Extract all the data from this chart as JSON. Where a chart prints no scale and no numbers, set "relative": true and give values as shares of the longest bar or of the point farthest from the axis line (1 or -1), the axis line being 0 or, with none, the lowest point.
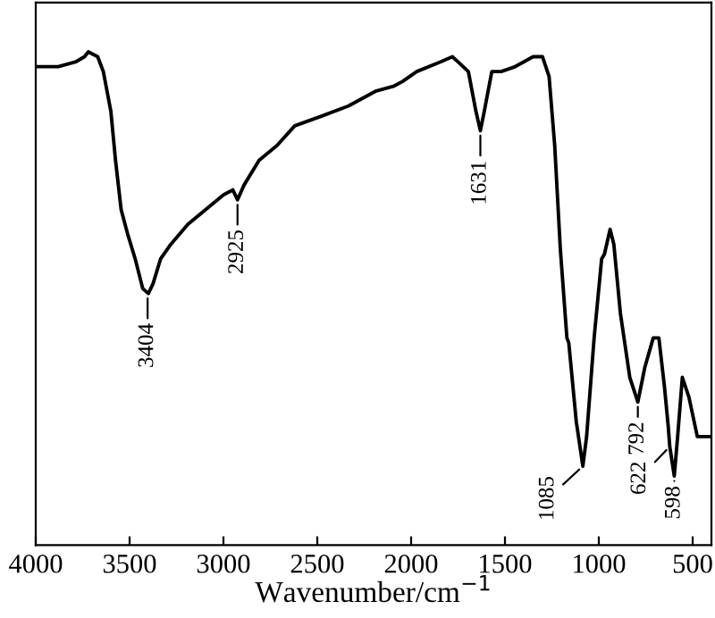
{
  "chart_data": {
    "type": "line",
    "relative": true,
    "xlabel": "Wavenumber/cm$^{−1}$",
    "xlim": [
      4000,
      400
    ],
    "xticks": [
      4000,
      3500,
      3000,
      2500,
      2000,
      1500,
      1000,
      500
    ],
    "tick_labels": "x",
    "line_style": "solid",
    "series": [
      {
        "color": "#000000",
        "x": [
          4000,
          3880,
          3785,
          3740,
          3720,
          3670,
          3640,
          3600,
          3575,
          3545,
          3510,
          3470,
          3430,
          3400,
          3375,
          3335,
          3280,
          3190,
          3095,
          3000,
          2950,
          2925,
          2890,
          2810,
          2715,
          2620,
          2475,
          2335,
          2190,
          2095,
          2045,
          1970,
          1840,
          1780,
          1695,
          1655,
          1631,
          1610,
          1570,
          1520,
          1445,
          1350,
          1300,
          1265,
          1235,
          1205,
          1170,
          1160,
          1120,
          1085,
          1065,
          1025,
          985,
          970,
          940,
          920,
          885,
          835,
          792,
          755,
          710,
          680,
          650,
          630,
          622,
          598,
          580,
          555,
          520,
          475,
          410
        ],
        "values": [
          0.97,
          0.97,
          0.98,
          0.99,
          1.0,
          0.99,
          0.96,
          0.88,
          0.78,
          0.68,
          0.63,
          0.58,
          0.52,
          0.51,
          0.53,
          0.58,
          0.61,
          0.65,
          0.68,
          0.71,
          0.72,
          0.7,
          0.73,
          0.78,
          0.81,
          0.85,
          0.87,
          0.89,
          0.92,
          0.93,
          0.94,
          0.96,
          0.98,
          0.99,
          0.96,
          0.88,
          0.84,
          0.88,
          0.96,
          0.96,
          0.97,
          0.99,
          0.99,
          0.95,
          0.81,
          0.6,
          0.42,
          0.41,
          0.25,
          0.16,
          0.22,
          0.42,
          0.58,
          0.59,
          0.64,
          0.61,
          0.47,
          0.34,
          0.29,
          0.36,
          0.42,
          0.42,
          0.32,
          0.24,
          0.2,
          0.14,
          0.22,
          0.34,
          0.3,
          0.22,
          0.22
        ]
      }
    ],
    "annotations": [
      {
        "text": "3404",
        "x": 3404,
        "y": 0.51
      },
      {
        "text": "2925",
        "x": 2925,
        "y": 0.7
      },
      {
        "text": "1631",
        "x": 1631,
        "y": 0.84
      },
      {
        "text": "1085",
        "x": 1085,
        "y": 0.16
      },
      {
        "text": "792",
        "x": 792,
        "y": 0.29
      },
      {
        "text": "622",
        "x": 622,
        "y": 0.2
      },
      {
        "text": "598",
        "x": 598,
        "y": 0.14
      }
    ]
  }
}
